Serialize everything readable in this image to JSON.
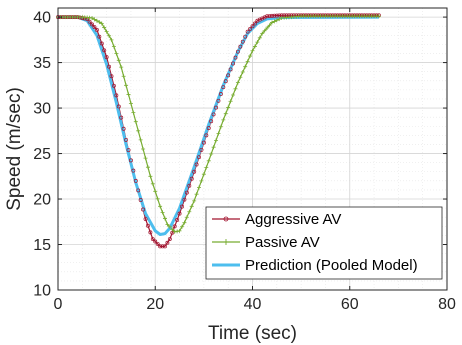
{
  "chart_data": {
    "type": "line",
    "title": "",
    "xlabel": "Time (sec)",
    "ylabel": "Speed (m/sec)",
    "xlim": [
      0,
      80
    ],
    "ylim": [
      10,
      41
    ],
    "xticks": [
      0,
      20,
      40,
      60,
      80
    ],
    "yticks": [
      10,
      15,
      20,
      25,
      30,
      35,
      40
    ],
    "grid": true,
    "minor_grid": true,
    "legend_position": "bottom-right",
    "series": [
      {
        "name": "Aggressive AV",
        "color": "#a2142f",
        "marker": "circle",
        "points": [
          [
            0,
            40
          ],
          [
            4,
            40
          ],
          [
            6,
            39.8
          ],
          [
            8,
            38.6
          ],
          [
            10,
            35.6
          ],
          [
            12,
            31.4
          ],
          [
            14,
            26.5
          ],
          [
            16,
            22
          ],
          [
            18,
            17.8
          ],
          [
            19.5,
            15.6
          ],
          [
            21,
            14.8
          ],
          [
            22,
            14.8
          ],
          [
            23,
            15.6
          ],
          [
            25,
            18.4
          ],
          [
            28,
            23
          ],
          [
            31,
            27.8
          ],
          [
            34,
            32.3
          ],
          [
            37,
            36.2
          ],
          [
            39,
            38.4
          ],
          [
            41,
            39.6
          ],
          [
            43,
            40.1
          ],
          [
            46,
            40.2
          ],
          [
            66,
            40.2
          ]
        ]
      },
      {
        "name": "Passive AV",
        "color": "#77ac30",
        "marker": "plus",
        "points": [
          [
            0,
            40
          ],
          [
            5,
            40
          ],
          [
            7,
            39.9
          ],
          [
            9,
            39.3
          ],
          [
            11,
            37.5
          ],
          [
            13,
            34.5
          ],
          [
            15,
            30.5
          ],
          [
            17,
            26.5
          ],
          [
            19,
            22.5
          ],
          [
            21,
            19.2
          ],
          [
            22.5,
            17.2
          ],
          [
            24,
            16.4
          ],
          [
            25,
            16.5
          ],
          [
            26,
            17.4
          ],
          [
            28,
            19.8
          ],
          [
            31,
            24.2
          ],
          [
            34,
            28.7
          ],
          [
            37,
            32.8
          ],
          [
            40,
            36.3
          ],
          [
            42,
            38.2
          ],
          [
            44,
            39.4
          ],
          [
            46,
            39.9
          ],
          [
            50,
            40.1
          ],
          [
            66,
            40.1
          ]
        ]
      },
      {
        "name": "Prediction (Pooled Model)",
        "color": "#4dbeee",
        "marker": "none",
        "points": [
          [
            0,
            40
          ],
          [
            4,
            40
          ],
          [
            6,
            39.6
          ],
          [
            8,
            38
          ],
          [
            10,
            34.8
          ],
          [
            12,
            30.6
          ],
          [
            14,
            26
          ],
          [
            16,
            21.8
          ],
          [
            18,
            18.4
          ],
          [
            20,
            16.5
          ],
          [
            21,
            16.1
          ],
          [
            22,
            16.2
          ],
          [
            23,
            16.8
          ],
          [
            25,
            19
          ],
          [
            28,
            23.5
          ],
          [
            31,
            28.2
          ],
          [
            34,
            32.5
          ],
          [
            37,
            36.2
          ],
          [
            39,
            38.2
          ],
          [
            41,
            39.3
          ],
          [
            43,
            39.8
          ],
          [
            46,
            39.95
          ],
          [
            66,
            40
          ]
        ]
      }
    ]
  }
}
